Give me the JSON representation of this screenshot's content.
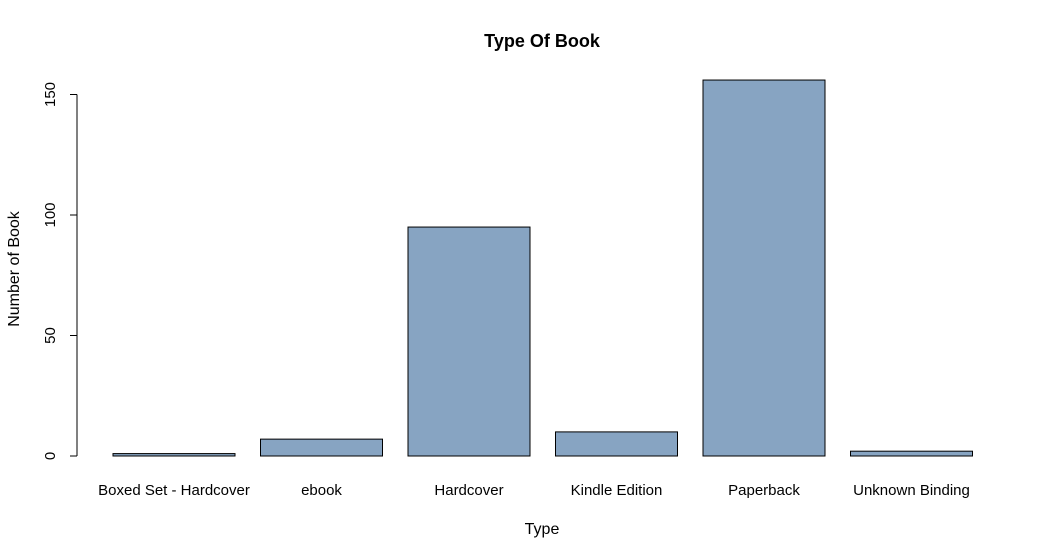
{
  "chart_data": {
    "type": "bar",
    "title": "Type Of Book",
    "xlabel": "Type",
    "ylabel": "Number of Book",
    "categories": [
      "Boxed Set - Hardcover",
      "ebook",
      "Hardcover",
      "Kindle Edition",
      "Paperback",
      "Unknown Binding"
    ],
    "values": [
      1,
      7,
      95,
      10,
      156,
      2
    ],
    "ylim": [
      0,
      160
    ],
    "yticks": [
      0,
      50,
      100,
      150
    ],
    "bar_color": "#87A4C2",
    "grid": false,
    "legend": "none"
  }
}
